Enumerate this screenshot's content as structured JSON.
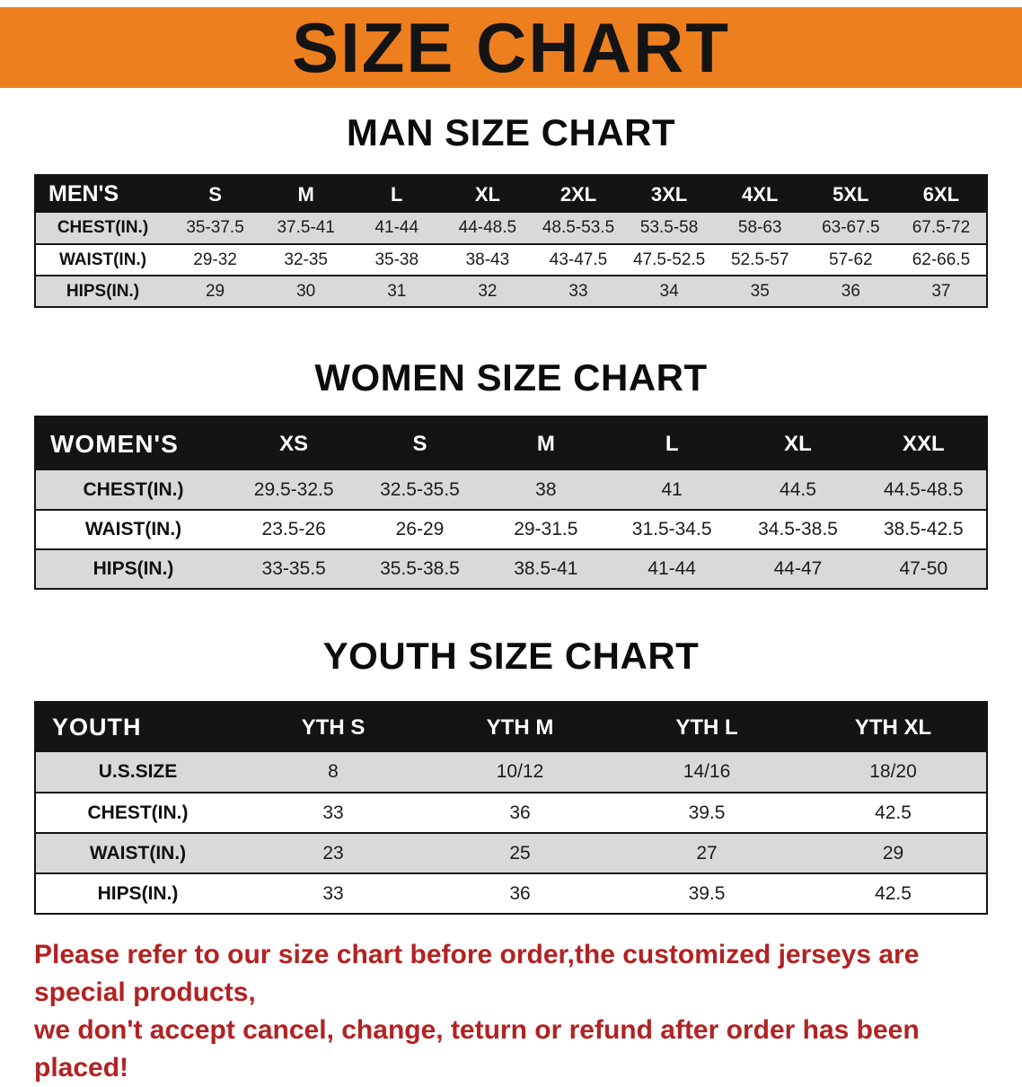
{
  "banner": {
    "title": "SIZE CHART",
    "bg_color": "#ee7f1f",
    "text_color": "#141414"
  },
  "colors": {
    "table_header_bg": "#141414",
    "table_header_text": "#ffffff",
    "row_shade": "#d9d9d9",
    "disclaimer_red": "#b22222"
  },
  "men": {
    "heading": "MAN SIZE CHART",
    "table": {
      "header": [
        "MEN'S",
        "S",
        "M",
        "L",
        "XL",
        "2XL",
        "3XL",
        "4XL",
        "5XL",
        "6XL"
      ],
      "rows": [
        [
          "CHEST(IN.)",
          "35-37.5",
          "37.5-41",
          "41-44",
          "44-48.5",
          "48.5-53.5",
          "53.5-58",
          "58-63",
          "63-67.5",
          "67.5-72"
        ],
        [
          "WAIST(IN.)",
          "29-32",
          "32-35",
          "35-38",
          "38-43",
          "43-47.5",
          "47.5-52.5",
          "52.5-57",
          "57-62",
          "62-66.5"
        ],
        [
          "HIPS(IN.)",
          "29",
          "30",
          "31",
          "32",
          "33",
          "34",
          "35",
          "36",
          "37"
        ]
      ]
    }
  },
  "women": {
    "heading": "WOMEN SIZE CHART",
    "table": {
      "header": [
        "WOMEN'S",
        "XS",
        "S",
        "M",
        "L",
        "XL",
        "XXL"
      ],
      "rows": [
        [
          "CHEST(IN.)",
          "29.5-32.5",
          "32.5-35.5",
          "38",
          "41",
          "44.5",
          "44.5-48.5"
        ],
        [
          "WAIST(IN.)",
          "23.5-26",
          "26-29",
          "29-31.5",
          "31.5-34.5",
          "34.5-38.5",
          "38.5-42.5"
        ],
        [
          "HIPS(IN.)",
          "33-35.5",
          "35.5-38.5",
          "38.5-41",
          "41-44",
          "44-47",
          "47-50"
        ]
      ]
    }
  },
  "youth": {
    "heading": "YOUTH SIZE CHART",
    "table": {
      "header": [
        "YOUTH",
        "YTH S",
        "YTH M",
        "YTH L",
        "YTH XL"
      ],
      "rows": [
        [
          "U.S.SIZE",
          "8",
          "10/12",
          "14/16",
          "18/20"
        ],
        [
          "CHEST(IN.)",
          "33",
          "36",
          "39.5",
          "42.5"
        ],
        [
          "WAIST(IN.)",
          "23",
          "25",
          "27",
          "29"
        ],
        [
          "HIPS(IN.)",
          "33",
          "36",
          "39.5",
          "42.5"
        ]
      ]
    }
  },
  "disclaimer": {
    "color": "#b22222",
    "lines": [
      "Please refer to our size chart before order,the customized jerseys are special products,",
      "we don't accept cancel, change, teturn or refund after order has been placed!"
    ]
  }
}
